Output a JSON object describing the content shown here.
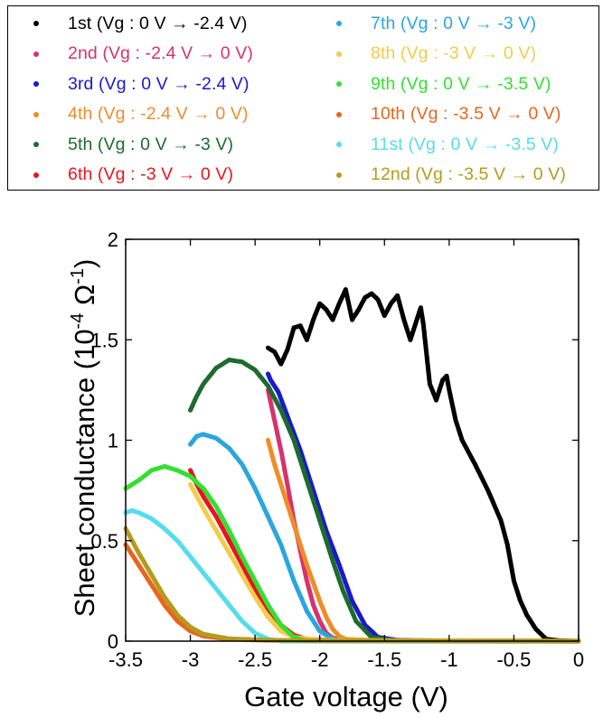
{
  "chart_data": {
    "type": "scatter",
    "xlabel": "Gate voltage (V)",
    "ylabel": {
      "prefix": "Sheet conductance (10",
      "sup": "-4",
      "unit": " Ω",
      "sup2": "-1",
      "suffix": ")"
    },
    "xlim": [
      -3.5,
      0
    ],
    "ylim": [
      0,
      2
    ],
    "xticks": [
      -3.5,
      -3,
      -2.5,
      -2,
      -1.5,
      -1,
      -0.5,
      0
    ],
    "xtick_labels": [
      "-3.5",
      "-3",
      "-2.5",
      "-2",
      "-1.5",
      "-1",
      "-0.5",
      "0"
    ],
    "yticks": [
      0,
      0.5,
      1,
      1.5,
      2
    ],
    "ytick_labels": [
      "0",
      "0.5",
      "1",
      "1.5",
      "2"
    ],
    "grid": false,
    "legend_position": "top (outside, boxed, two columns)",
    "series": [
      {
        "name": "1st (Vg : 0 V → -2.4 V)",
        "color": "#000000",
        "points": [
          [
            0,
            0
          ],
          [
            -0.15,
            0.003
          ],
          [
            -0.25,
            0.01
          ],
          [
            -0.33,
            0.06
          ],
          [
            -0.4,
            0.13
          ],
          [
            -0.45,
            0.2
          ],
          [
            -0.5,
            0.3
          ],
          [
            -0.55,
            0.48
          ],
          [
            -0.6,
            0.6
          ],
          [
            -0.7,
            0.75
          ],
          [
            -0.8,
            0.88
          ],
          [
            -0.9,
            1.0
          ],
          [
            -0.95,
            1.1
          ],
          [
            -1.0,
            1.25
          ],
          [
            -1.02,
            1.32
          ],
          [
            -1.05,
            1.3
          ],
          [
            -1.1,
            1.2
          ],
          [
            -1.15,
            1.28
          ],
          [
            -1.2,
            1.58
          ],
          [
            -1.22,
            1.66
          ],
          [
            -1.25,
            1.6
          ],
          [
            -1.3,
            1.5
          ],
          [
            -1.35,
            1.6
          ],
          [
            -1.4,
            1.72
          ],
          [
            -1.45,
            1.68
          ],
          [
            -1.5,
            1.62
          ],
          [
            -1.55,
            1.7
          ],
          [
            -1.6,
            1.73
          ],
          [
            -1.65,
            1.71
          ],
          [
            -1.7,
            1.65
          ],
          [
            -1.75,
            1.6
          ],
          [
            -1.8,
            1.75
          ],
          [
            -1.85,
            1.68
          ],
          [
            -1.9,
            1.6
          ],
          [
            -1.95,
            1.65
          ],
          [
            -2.0,
            1.68
          ],
          [
            -2.05,
            1.6
          ],
          [
            -2.1,
            1.5
          ],
          [
            -2.15,
            1.57
          ],
          [
            -2.2,
            1.56
          ],
          [
            -2.25,
            1.45
          ],
          [
            -2.3,
            1.38
          ],
          [
            -2.35,
            1.44
          ],
          [
            -2.4,
            1.46
          ]
        ]
      },
      {
        "name": "2nd (Vg : -2.4 V → 0 V)",
        "color": "#d6336c",
        "points": [
          [
            -2.4,
            1.25
          ],
          [
            -2.35,
            1.1
          ],
          [
            -2.3,
            0.95
          ],
          [
            -2.25,
            0.78
          ],
          [
            -2.2,
            0.6
          ],
          [
            -2.15,
            0.45
          ],
          [
            -2.1,
            0.3
          ],
          [
            -2.05,
            0.18
          ],
          [
            -2.0,
            0.1
          ],
          [
            -1.95,
            0.04
          ],
          [
            -1.9,
            0.015
          ],
          [
            -1.7,
            0.005
          ],
          [
            -1.0,
            0.002
          ],
          [
            0,
            0
          ]
        ]
      },
      {
        "name": "3rd (Vg : 0 V → -2.4 V)",
        "color": "#1a1acc",
        "points": [
          [
            0,
            0
          ],
          [
            -1.0,
            0.0
          ],
          [
            -1.4,
            0.005
          ],
          [
            -1.55,
            0.02
          ],
          [
            -1.65,
            0.08
          ],
          [
            -1.75,
            0.2
          ],
          [
            -1.85,
            0.38
          ],
          [
            -1.95,
            0.55
          ],
          [
            -2.05,
            0.75
          ],
          [
            -2.15,
            0.95
          ],
          [
            -2.25,
            1.12
          ],
          [
            -2.32,
            1.24
          ],
          [
            -2.38,
            1.3
          ],
          [
            -2.4,
            1.33
          ]
        ]
      },
      {
        "name": "4th (Vg : -2.4 V → 0 V)",
        "color": "#f08c28",
        "points": [
          [
            -2.4,
            1.0
          ],
          [
            -2.35,
            0.88
          ],
          [
            -2.3,
            0.78
          ],
          [
            -2.25,
            0.68
          ],
          [
            -2.2,
            0.58
          ],
          [
            -2.15,
            0.48
          ],
          [
            -2.1,
            0.38
          ],
          [
            -2.0,
            0.2
          ],
          [
            -1.95,
            0.12
          ],
          [
            -1.9,
            0.06
          ],
          [
            -1.85,
            0.025
          ],
          [
            -1.8,
            0.01
          ],
          [
            -1.5,
            0.002
          ],
          [
            0,
            0
          ]
        ]
      },
      {
        "name": "5th (Vg : 0 V → -3 V)",
        "color": "#1e6b2e",
        "points": [
          [
            0,
            0
          ],
          [
            -1.4,
            0.0
          ],
          [
            -1.6,
            0.02
          ],
          [
            -1.72,
            0.1
          ],
          [
            -1.82,
            0.25
          ],
          [
            -1.9,
            0.4
          ],
          [
            -2.0,
            0.6
          ],
          [
            -2.1,
            0.8
          ],
          [
            -2.2,
            1.0
          ],
          [
            -2.3,
            1.15
          ],
          [
            -2.4,
            1.27
          ],
          [
            -2.5,
            1.35
          ],
          [
            -2.6,
            1.39
          ],
          [
            -2.7,
            1.4
          ],
          [
            -2.8,
            1.36
          ],
          [
            -2.9,
            1.28
          ],
          [
            -2.95,
            1.22
          ],
          [
            -3.0,
            1.15
          ]
        ]
      },
      {
        "name": "6th (Vg : -3 V → 0 V)",
        "color": "#e8141e",
        "points": [
          [
            -3.0,
            0.85
          ],
          [
            -2.95,
            0.78
          ],
          [
            -2.9,
            0.72
          ],
          [
            -2.8,
            0.62
          ],
          [
            -2.7,
            0.5
          ],
          [
            -2.6,
            0.38
          ],
          [
            -2.5,
            0.26
          ],
          [
            -2.4,
            0.16
          ],
          [
            -2.3,
            0.08
          ],
          [
            -2.2,
            0.03
          ],
          [
            -2.1,
            0.01
          ],
          [
            -1.8,
            0.002
          ],
          [
            0,
            0
          ]
        ]
      },
      {
        "name": "7th (Vg : 0 V → -3 V)",
        "color": "#2aa7dc",
        "points": [
          [
            0,
            0
          ],
          [
            -1.8,
            0.0
          ],
          [
            -1.9,
            0.01
          ],
          [
            -2.0,
            0.05
          ],
          [
            -2.1,
            0.15
          ],
          [
            -2.2,
            0.3
          ],
          [
            -2.3,
            0.48
          ],
          [
            -2.4,
            0.62
          ],
          [
            -2.5,
            0.76
          ],
          [
            -2.6,
            0.88
          ],
          [
            -2.7,
            0.96
          ],
          [
            -2.8,
            1.01
          ],
          [
            -2.9,
            1.03
          ],
          [
            -2.95,
            1.02
          ],
          [
            -3.0,
            0.98
          ]
        ]
      },
      {
        "name": "8th (Vg : -3 V → 0 V)",
        "color": "#f2cc4a",
        "points": [
          [
            -3.0,
            0.78
          ],
          [
            -2.9,
            0.66
          ],
          [
            -2.8,
            0.55
          ],
          [
            -2.7,
            0.44
          ],
          [
            -2.6,
            0.33
          ],
          [
            -2.5,
            0.22
          ],
          [
            -2.4,
            0.12
          ],
          [
            -2.3,
            0.05
          ],
          [
            -2.2,
            0.02
          ],
          [
            -2.0,
            0.005
          ],
          [
            0,
            0
          ]
        ]
      },
      {
        "name": "9th (Vg : 0 V → -3.5 V)",
        "color": "#33e033",
        "points": [
          [
            0,
            0
          ],
          [
            -2.1,
            0.0
          ],
          [
            -2.2,
            0.02
          ],
          [
            -2.3,
            0.08
          ],
          [
            -2.4,
            0.18
          ],
          [
            -2.5,
            0.3
          ],
          [
            -2.6,
            0.42
          ],
          [
            -2.7,
            0.55
          ],
          [
            -2.8,
            0.67
          ],
          [
            -2.9,
            0.76
          ],
          [
            -3.0,
            0.82
          ],
          [
            -3.1,
            0.85
          ],
          [
            -3.2,
            0.87
          ],
          [
            -3.3,
            0.85
          ],
          [
            -3.4,
            0.8
          ],
          [
            -3.5,
            0.76
          ]
        ]
      },
      {
        "name": "10th (Vg : -3.5 V → 0 V)",
        "color": "#e8651e",
        "points": [
          [
            -3.5,
            0.48
          ],
          [
            -3.4,
            0.38
          ],
          [
            -3.3,
            0.28
          ],
          [
            -3.2,
            0.18
          ],
          [
            -3.1,
            0.1
          ],
          [
            -3.0,
            0.05
          ],
          [
            -2.9,
            0.025
          ],
          [
            -2.7,
            0.01
          ],
          [
            -2.4,
            0.004
          ],
          [
            -2.0,
            0.002
          ],
          [
            0,
            0
          ]
        ]
      },
      {
        "name": "11st (Vg : 0 V → -3.5 V)",
        "color": "#55ddee",
        "points": [
          [
            0,
            0
          ],
          [
            -2.3,
            0.0
          ],
          [
            -2.4,
            0.01
          ],
          [
            -2.5,
            0.04
          ],
          [
            -2.6,
            0.1
          ],
          [
            -2.7,
            0.18
          ],
          [
            -2.8,
            0.26
          ],
          [
            -2.9,
            0.34
          ],
          [
            -3.0,
            0.42
          ],
          [
            -3.1,
            0.5
          ],
          [
            -3.2,
            0.56
          ],
          [
            -3.3,
            0.61
          ],
          [
            -3.4,
            0.64
          ],
          [
            -3.45,
            0.65
          ],
          [
            -3.5,
            0.64
          ]
        ]
      },
      {
        "name": "12nd (Vg : -3.5 V → 0 V)",
        "color": "#b59a1e",
        "points": [
          [
            -3.5,
            0.56
          ],
          [
            -3.4,
            0.44
          ],
          [
            -3.3,
            0.33
          ],
          [
            -3.2,
            0.22
          ],
          [
            -3.1,
            0.13
          ],
          [
            -3.0,
            0.07
          ],
          [
            -2.9,
            0.035
          ],
          [
            -2.7,
            0.012
          ],
          [
            -2.4,
            0.005
          ],
          [
            -2.0,
            0.002
          ],
          [
            0,
            0
          ]
        ]
      }
    ]
  }
}
